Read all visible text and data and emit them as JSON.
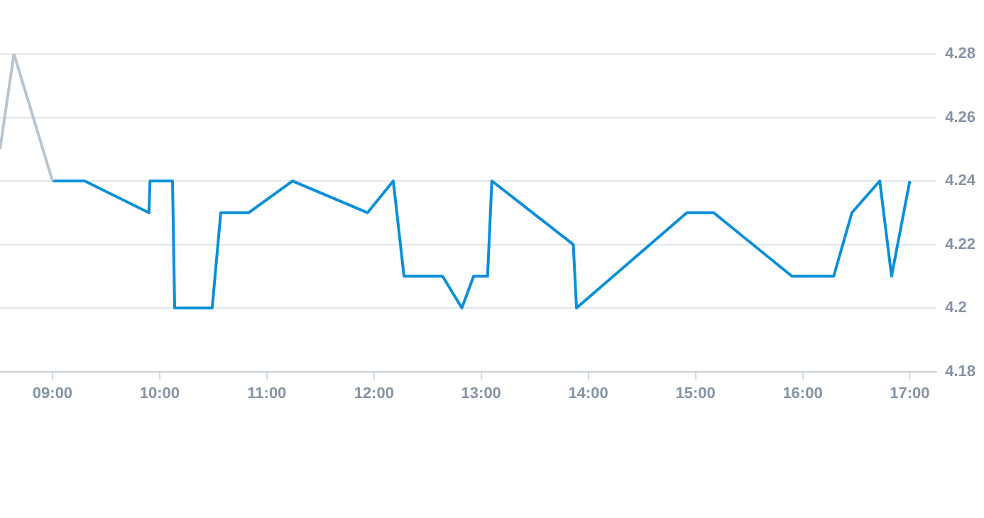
{
  "chart_data": {
    "type": "line",
    "xlim": [
      8.51,
      17.25
    ],
    "xticks": [
      {
        "value": 9,
        "label": "09:00"
      },
      {
        "value": 10,
        "label": "10:00"
      },
      {
        "value": 11,
        "label": "11:00"
      },
      {
        "value": 12,
        "label": "12:00"
      },
      {
        "value": 13,
        "label": "13:00"
      },
      {
        "value": 14,
        "label": "14:00"
      },
      {
        "value": 15,
        "label": "15:00"
      },
      {
        "value": 16,
        "label": "16:00"
      },
      {
        "value": 17,
        "label": "17:00"
      }
    ],
    "ylim": [
      4.18,
      4.28
    ],
    "yticks": [
      4.18,
      4.2,
      4.22,
      4.24,
      4.26,
      4.28
    ],
    "grid": "y",
    "legend": false,
    "marker": "none",
    "line_style": "solid",
    "series": [
      {
        "color": "#b8c4ce",
        "x": [
          8.51,
          8.64,
          9.0
        ],
        "values": [
          4.25,
          4.28,
          4.24
        ]
      },
      {
        "color": "#0a8fd8",
        "x": [
          9.0,
          9.3,
          9.9,
          9.91,
          10.12,
          10.14,
          10.49,
          10.57,
          10.83,
          11.24,
          11.94,
          12.18,
          12.28,
          12.64,
          12.82,
          12.93,
          13.06,
          13.1,
          13.86,
          13.89,
          14.92,
          15.17,
          15.9,
          16.29,
          16.46,
          16.72,
          16.83,
          17.0
        ],
        "values": [
          4.24,
          4.24,
          4.23,
          4.24,
          4.24,
          4.2,
          4.2,
          4.23,
          4.23,
          4.24,
          4.23,
          4.24,
          4.21,
          4.21,
          4.2,
          4.21,
          4.21,
          4.24,
          4.22,
          4.2,
          4.23,
          4.23,
          4.21,
          4.21,
          4.23,
          4.24,
          4.21,
          4.24
        ]
      }
    ]
  }
}
